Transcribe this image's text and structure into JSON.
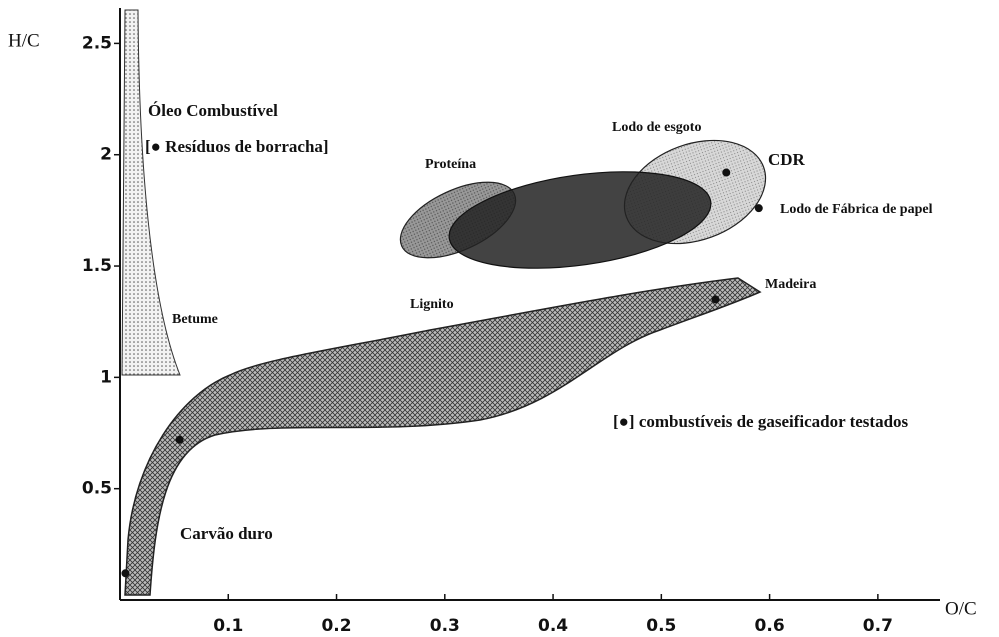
{
  "chart_data": {
    "type": "scatter",
    "xlabel": "O/C",
    "ylabel": "H/C",
    "xlim": [
      0,
      0.75
    ],
    "ylim": [
      0,
      2.65
    ],
    "xticks": [
      0.1,
      0.2,
      0.3,
      0.4,
      0.5,
      0.6,
      0.7
    ],
    "yticks": [
      0.5,
      1,
      1.5,
      2,
      2.5
    ],
    "series": [
      {
        "color": "#111",
        "x": [
          0.005,
          0.055,
          0.55,
          0.56,
          0.59
        ],
        "y": [
          0.12,
          0.72,
          1.35,
          1.92,
          1.76
        ]
      }
    ],
    "annotations": [
      "Óleo Combustível",
      "[● Resíduos de borracha]",
      "Betume",
      "Proteína",
      "Lodo de esgoto",
      "CDR",
      "Lodo de Fábrica de papel",
      "Lignito",
      "Madeira",
      "[●] combustíveis de gaseificador testados",
      "Carvão duro"
    ]
  }
}
